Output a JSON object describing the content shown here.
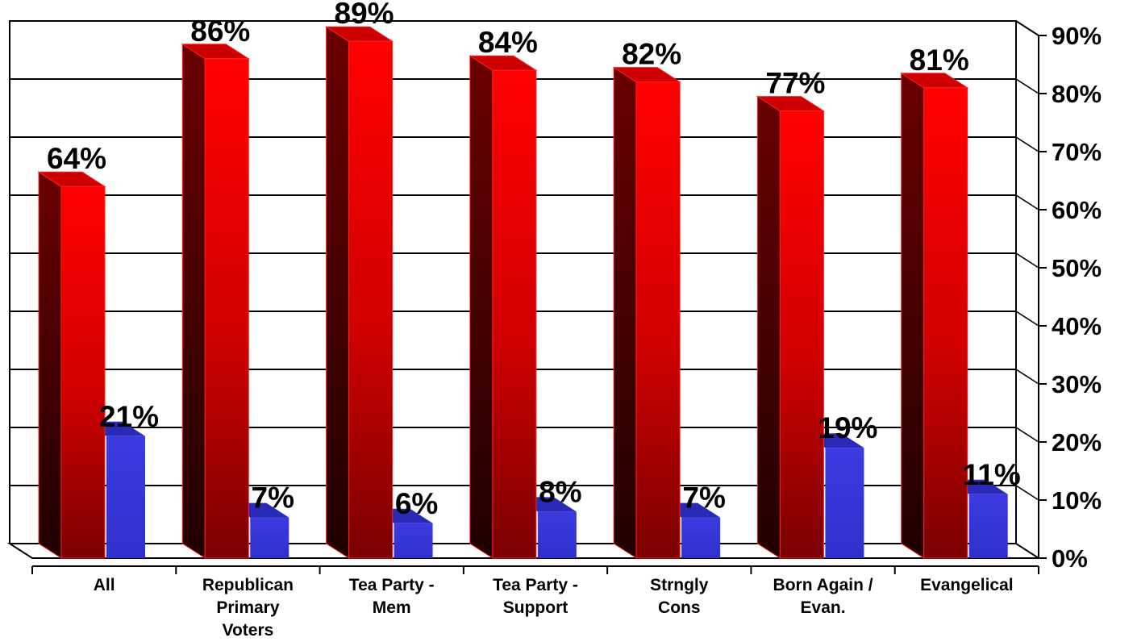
{
  "chart_data": {
    "type": "bar",
    "subtype": "3d-clustered-column",
    "categories": [
      [
        "All"
      ],
      [
        "Republican",
        "Primary",
        "Voters"
      ],
      [
        "Tea Party -",
        "Mem"
      ],
      [
        "Tea Party -",
        "Support"
      ],
      [
        "Strngly",
        "Cons"
      ],
      [
        "Born Again /",
        "Evan."
      ],
      [
        "Evangelical"
      ]
    ],
    "series": [
      {
        "values": [
          64,
          86,
          89,
          84,
          82,
          77,
          81
        ],
        "color": "#ff0000",
        "labels": [
          "64%",
          "86%",
          "89%",
          "84%",
          "82%",
          "77%",
          "81%"
        ]
      },
      {
        "values": [
          21,
          7,
          6,
          8,
          7,
          19,
          11
        ],
        "color": "#3333cc",
        "labels": [
          "21%",
          "7%",
          "6%",
          "8%",
          "7%",
          "19%",
          "11%"
        ]
      }
    ],
    "y_ticks": [
      "0%",
      "10%",
      "20%",
      "30%",
      "40%",
      "50%",
      "60%",
      "70%",
      "80%",
      "90%"
    ],
    "ylim": [
      0,
      90
    ],
    "y_axis_position": "right",
    "grid": true,
    "legend": "none",
    "title": "",
    "xlabel": "",
    "ylabel": ""
  }
}
